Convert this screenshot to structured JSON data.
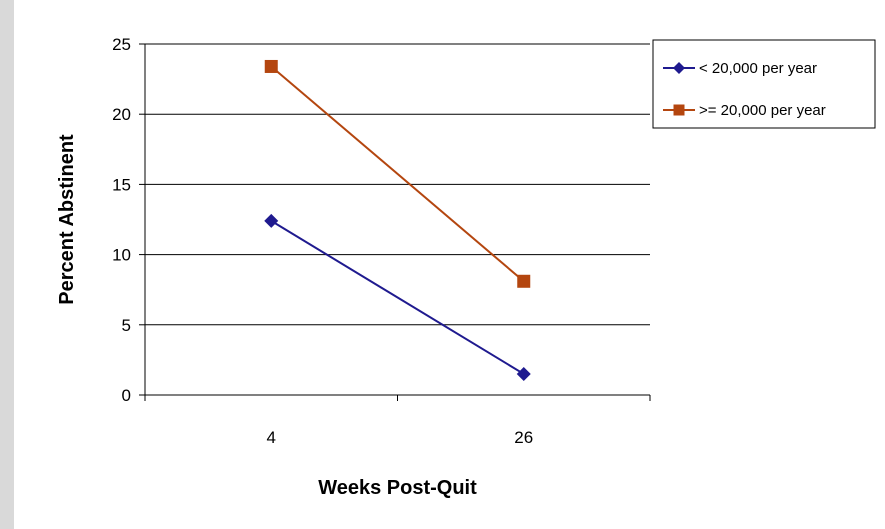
{
  "chart_data": {
    "type": "line",
    "title": "",
    "xlabel": "Weeks Post-Quit",
    "ylabel": "Percent Abstinent",
    "categories": [
      "4",
      "26"
    ],
    "ylim": [
      0,
      25
    ],
    "yticks": [
      "0",
      "5",
      "10",
      "15",
      "20",
      "25"
    ],
    "ytick_values": [
      0,
      5,
      10,
      15,
      20,
      25
    ],
    "grid": true,
    "legend_position": "right",
    "series": [
      {
        "name": "< 20,000 per year",
        "values": [
          12.4,
          1.5
        ],
        "color": "#1f1a8f",
        "marker": "diamond"
      },
      {
        "name": ">= 20,000 per year",
        "values": [
          23.4,
          8.1
        ],
        "color": "#b4460f",
        "marker": "square"
      }
    ]
  }
}
